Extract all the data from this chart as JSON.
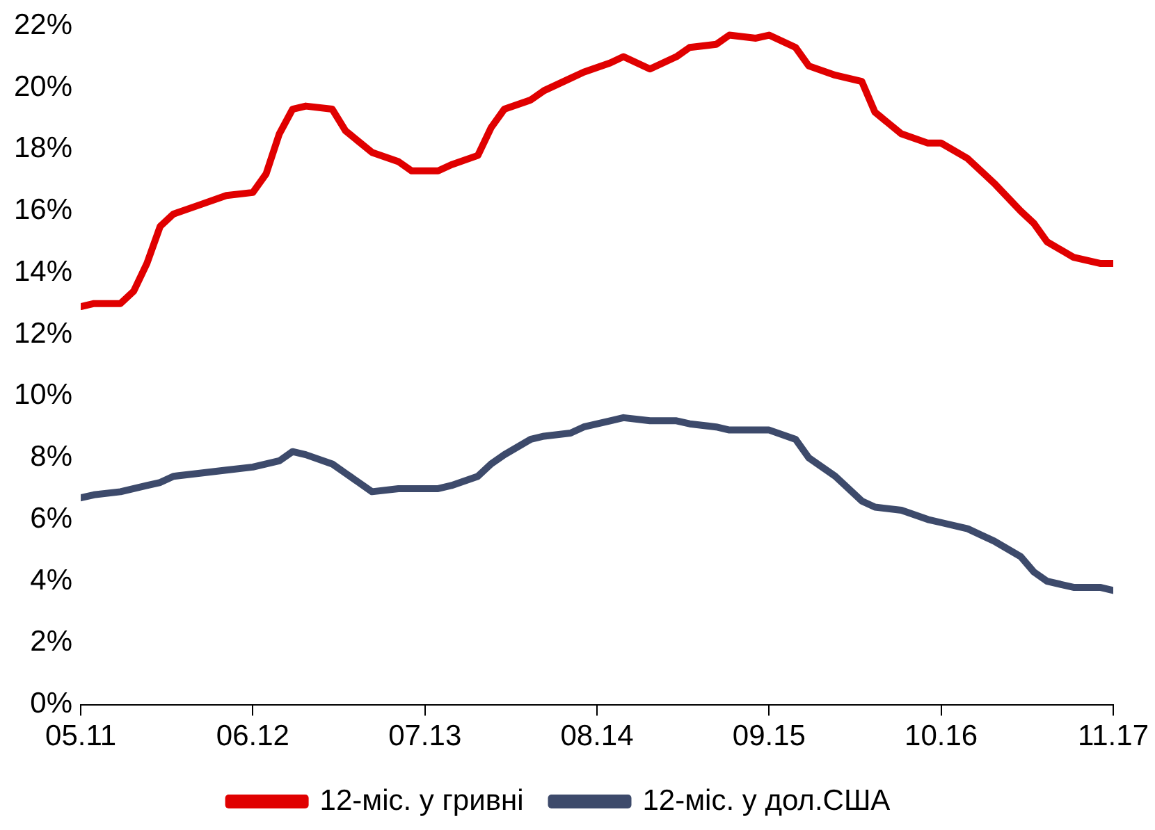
{
  "chart_data": {
    "type": "line",
    "x": [
      "2011-05",
      "2011-06",
      "2011-08",
      "2011-09",
      "2011-10",
      "2011-11",
      "2011-12",
      "2012-02",
      "2012-04",
      "2012-06",
      "2012-07",
      "2012-08",
      "2012-09",
      "2012-10",
      "2012-12",
      "2013-01",
      "2013-03",
      "2013-05",
      "2013-06",
      "2013-08",
      "2013-09",
      "2013-11",
      "2013-12",
      "2014-01",
      "2014-03",
      "2014-04",
      "2014-06",
      "2014-07",
      "2014-09",
      "2014-10",
      "2014-12",
      "2015-02",
      "2015-03",
      "2015-05",
      "2015-06",
      "2015-08",
      "2015-09",
      "2015-11",
      "2015-12",
      "2016-02",
      "2016-04",
      "2016-05",
      "2016-07",
      "2016-09",
      "2016-10",
      "2016-12",
      "2017-02",
      "2017-04",
      "2017-05",
      "2017-06",
      "2017-08",
      "2017-10",
      "2017-11"
    ],
    "series": [
      {
        "name": "12-міс. у гривні",
        "color": "#e00000",
        "values": [
          12.9,
          13.0,
          13.0,
          13.4,
          14.3,
          15.5,
          15.9,
          16.2,
          16.5,
          16.6,
          17.2,
          18.5,
          19.3,
          19.4,
          19.3,
          18.6,
          17.9,
          17.6,
          17.3,
          17.3,
          17.5,
          17.8,
          18.7,
          19.3,
          19.6,
          19.9,
          20.3,
          20.5,
          20.8,
          21.0,
          20.6,
          21.0,
          21.3,
          21.4,
          21.7,
          21.6,
          21.7,
          21.3,
          20.7,
          20.4,
          20.2,
          19.2,
          18.5,
          18.2,
          18.2,
          17.7,
          16.9,
          16.0,
          15.6,
          15.0,
          14.5,
          14.3,
          14.3
        ]
      },
      {
        "name": "12-міс. у дол.США",
        "color": "#3d4a6b",
        "values": [
          6.7,
          6.8,
          6.9,
          7.0,
          7.1,
          7.2,
          7.4,
          7.5,
          7.6,
          7.7,
          7.8,
          7.9,
          8.2,
          8.1,
          7.8,
          7.5,
          6.9,
          7.0,
          7.0,
          7.0,
          7.1,
          7.4,
          7.8,
          8.1,
          8.6,
          8.7,
          8.8,
          9.0,
          9.2,
          9.3,
          9.2,
          9.2,
          9.1,
          9.0,
          8.9,
          8.9,
          8.9,
          8.6,
          8.0,
          7.4,
          6.6,
          6.4,
          6.3,
          6.0,
          5.9,
          5.7,
          5.3,
          4.8,
          4.3,
          4.0,
          3.8,
          3.8,
          3.7
        ]
      }
    ],
    "xlim": [
      "2011-05",
      "2017-11"
    ],
    "xticks": [
      {
        "value": "2011-05",
        "label": "05.11"
      },
      {
        "value": "2012-06",
        "label": "06.12"
      },
      {
        "value": "2013-07",
        "label": "07.13"
      },
      {
        "value": "2014-08",
        "label": "08.14"
      },
      {
        "value": "2015-09",
        "label": "09.15"
      },
      {
        "value": "2016-10",
        "label": "10.16"
      },
      {
        "value": "2017-11",
        "label": "11.17"
      }
    ],
    "ylim": [
      0,
      22
    ],
    "yticks": [
      {
        "value": 0,
        "label": "0%"
      },
      {
        "value": 2,
        "label": "2%"
      },
      {
        "value": 4,
        "label": "4%"
      },
      {
        "value": 6,
        "label": "6%"
      },
      {
        "value": 8,
        "label": "8%"
      },
      {
        "value": 10,
        "label": "10%"
      },
      {
        "value": 12,
        "label": "12%"
      },
      {
        "value": 14,
        "label": "14%"
      },
      {
        "value": 16,
        "label": "16%"
      },
      {
        "value": 18,
        "label": "18%"
      },
      {
        "value": 20,
        "label": "20%"
      },
      {
        "value": 22,
        "label": "22%"
      }
    ],
    "grid": false,
    "legend": "bottom",
    "marker": "none",
    "line_style": "solid"
  }
}
